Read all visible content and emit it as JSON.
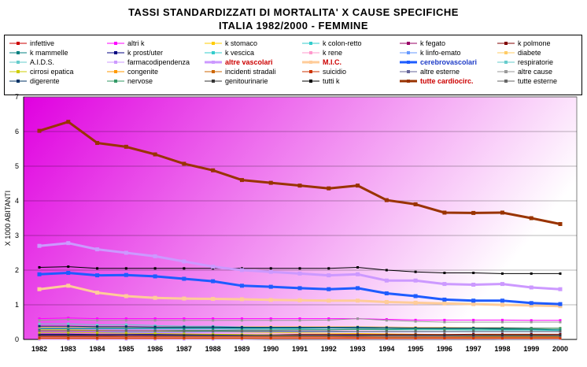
{
  "chart_data": {
    "type": "line",
    "title": "TASSI STANDARDIZZATI DI MORTALITA' X CAUSE SPECIFICHE",
    "subtitle": "ITALIA 1982/2000 - FEMMINE",
    "ylabel": "X 1000 ABITANTI",
    "xlabel": "",
    "ylim": [
      0,
      7
    ],
    "yticks": [
      "0",
      "1",
      "2",
      "3",
      "4",
      "5",
      "6",
      "7"
    ],
    "x": [
      "1982",
      "1983",
      "1984",
      "1985",
      "1986",
      "1987",
      "1988",
      "1989",
      "1990",
      "1991",
      "1992",
      "1993",
      "1994",
      "1995",
      "1996",
      "1997",
      "1998",
      "1999",
      "2000"
    ],
    "grid": true,
    "legend_position": "top",
    "background_gradient": [
      "#e000e0",
      "#ffffff"
    ],
    "series": [
      {
        "name": "infettive",
        "color": "#cc0000",
        "values": [
          0.05,
          0.05,
          0.05,
          0.05,
          0.05,
          0.05,
          0.05,
          0.05,
          0.05,
          0.05,
          0.05,
          0.06,
          0.06,
          0.06,
          0.06,
          0.06,
          0.06,
          0.06,
          0.06
        ]
      },
      {
        "name": "altri k",
        "color": "#ff00ff",
        "values": [
          0.6,
          0.62,
          0.6,
          0.6,
          0.6,
          0.6,
          0.6,
          0.6,
          0.6,
          0.6,
          0.6,
          0.6,
          0.58,
          0.56,
          0.56,
          0.56,
          0.56,
          0.55,
          0.55
        ]
      },
      {
        "name": "k stomaco",
        "color": "#ffcc00",
        "values": [
          0.28,
          0.28,
          0.26,
          0.25,
          0.24,
          0.23,
          0.22,
          0.21,
          0.2,
          0.19,
          0.18,
          0.17,
          0.16,
          0.15,
          0.14,
          0.14,
          0.13,
          0.13,
          0.12
        ]
      },
      {
        "name": "k colon-retto",
        "color": "#33cccc",
        "values": [
          0.3,
          0.3,
          0.3,
          0.3,
          0.3,
          0.3,
          0.3,
          0.3,
          0.3,
          0.3,
          0.29,
          0.29,
          0.28,
          0.28,
          0.28,
          0.27,
          0.27,
          0.27,
          0.26
        ]
      },
      {
        "name": "k fegato",
        "color": "#990066",
        "values": [
          0.1,
          0.1,
          0.1,
          0.11,
          0.11,
          0.11,
          0.11,
          0.11,
          0.11,
          0.11,
          0.11,
          0.11,
          0.1,
          0.1,
          0.1,
          0.1,
          0.1,
          0.1,
          0.1
        ]
      },
      {
        "name": "k polmone",
        "color": "#800000",
        "values": [
          0.12,
          0.12,
          0.12,
          0.12,
          0.13,
          0.13,
          0.13,
          0.13,
          0.13,
          0.14,
          0.14,
          0.14,
          0.14,
          0.14,
          0.14,
          0.15,
          0.15,
          0.15,
          0.15
        ]
      },
      {
        "name": "k mammelle",
        "color": "#008080",
        "values": [
          0.32,
          0.32,
          0.33,
          0.33,
          0.33,
          0.33,
          0.33,
          0.33,
          0.33,
          0.33,
          0.33,
          0.32,
          0.32,
          0.31,
          0.3,
          0.3,
          0.29,
          0.29,
          0.28
        ]
      },
      {
        "name": "k prost/uter",
        "color": "#000080",
        "values": [
          0.15,
          0.15,
          0.14,
          0.14,
          0.14,
          0.13,
          0.13,
          0.13,
          0.12,
          0.12,
          0.12,
          0.12,
          0.11,
          0.11,
          0.11,
          0.1,
          0.1,
          0.1,
          0.1
        ]
      },
      {
        "name": "k vescica",
        "color": "#33cccc",
        "values": [
          0.04,
          0.04,
          0.04,
          0.04,
          0.04,
          0.04,
          0.04,
          0.04,
          0.04,
          0.04,
          0.04,
          0.04,
          0.04,
          0.04,
          0.04,
          0.04,
          0.04,
          0.04,
          0.04
        ]
      },
      {
        "name": "k rene",
        "color": "#ff99cc",
        "values": [
          0.05,
          0.05,
          0.05,
          0.05,
          0.05,
          0.05,
          0.05,
          0.05,
          0.05,
          0.05,
          0.05,
          0.05,
          0.05,
          0.05,
          0.05,
          0.05,
          0.05,
          0.05,
          0.05
        ]
      },
      {
        "name": "k linfo-emato",
        "color": "#6699ff",
        "values": [
          0.2,
          0.2,
          0.2,
          0.21,
          0.21,
          0.21,
          0.22,
          0.22,
          0.22,
          0.22,
          0.22,
          0.22,
          0.22,
          0.22,
          0.22,
          0.22,
          0.22,
          0.22,
          0.22
        ]
      },
      {
        "name": "diabete",
        "color": "#ffcc66",
        "values": [
          0.35,
          0.36,
          0.36,
          0.36,
          0.36,
          0.36,
          0.36,
          0.37,
          0.37,
          0.37,
          0.37,
          0.37,
          0.36,
          0.35,
          0.35,
          0.34,
          0.34,
          0.33,
          0.33
        ]
      },
      {
        "name": "A.I.D.S.",
        "color": "#66cccc",
        "values": [
          0,
          0,
          0,
          0,
          0,
          0,
          0.01,
          0.01,
          0.02,
          0.02,
          0.03,
          0.03,
          0.04,
          0.04,
          0.03,
          0.02,
          0.01,
          0.01,
          0.01
        ]
      },
      {
        "name": "farmacodipendenza",
        "color": "#cc99ff",
        "values": [
          0,
          0,
          0,
          0,
          0,
          0,
          0,
          0,
          0.01,
          0.01,
          0.01,
          0.01,
          0.01,
          0.01,
          0.01,
          0.01,
          0.01,
          0.01,
          0.01
        ]
      },
      {
        "name": "altre vascolari",
        "color": "#cc99ff",
        "bold": true,
        "values": [
          2.7,
          2.78,
          2.6,
          2.5,
          2.4,
          2.25,
          2.1,
          2.0,
          1.95,
          1.9,
          1.85,
          1.88,
          1.7,
          1.7,
          1.6,
          1.58,
          1.6,
          1.5,
          1.45
        ]
      },
      {
        "name": "M.I.C.",
        "color": "#ffcc99",
        "bold": true,
        "values": [
          1.45,
          1.55,
          1.35,
          1.25,
          1.2,
          1.18,
          1.17,
          1.16,
          1.14,
          1.13,
          1.12,
          1.12,
          1.08,
          1.06,
          1.04,
          1.02,
          1.0,
          0.98,
          0.96
        ]
      },
      {
        "name": "cerebrovascolari",
        "color": "#1e5cff",
        "bold": true,
        "values": [
          1.88,
          1.92,
          1.85,
          1.86,
          1.82,
          1.75,
          1.68,
          1.55,
          1.52,
          1.48,
          1.45,
          1.48,
          1.33,
          1.25,
          1.15,
          1.12,
          1.12,
          1.05,
          1.02
        ]
      },
      {
        "name": "respiratorie",
        "color": "#66cccc",
        "values": [
          0.45,
          0.45,
          0.42,
          0.43,
          0.4,
          0.38,
          0.38,
          0.36,
          0.35,
          0.35,
          0.34,
          0.36,
          0.33,
          0.32,
          0.31,
          0.32,
          0.33,
          0.32,
          0.32
        ]
      },
      {
        "name": "cirrosi epatica",
        "color": "#cccc00",
        "values": [
          0.2,
          0.2,
          0.19,
          0.18,
          0.17,
          0.16,
          0.15,
          0.14,
          0.13,
          0.12,
          0.12,
          0.11,
          0.11,
          0.1,
          0.1,
          0.09,
          0.09,
          0.08,
          0.08
        ]
      },
      {
        "name": "congenite",
        "color": "#ff9900",
        "values": [
          0.03,
          0.03,
          0.03,
          0.03,
          0.03,
          0.03,
          0.03,
          0.03,
          0.03,
          0.03,
          0.03,
          0.03,
          0.03,
          0.03,
          0.03,
          0.03,
          0.03,
          0.03,
          0.03
        ]
      },
      {
        "name": "incidenti stradali",
        "color": "#cc6600",
        "values": [
          0.08,
          0.08,
          0.08,
          0.08,
          0.08,
          0.08,
          0.08,
          0.08,
          0.08,
          0.08,
          0.08,
          0.08,
          0.07,
          0.07,
          0.07,
          0.07,
          0.07,
          0.07,
          0.07
        ]
      },
      {
        "name": "suicidio",
        "color": "#cc3300",
        "values": [
          0.04,
          0.04,
          0.04,
          0.04,
          0.04,
          0.04,
          0.04,
          0.04,
          0.04,
          0.04,
          0.04,
          0.04,
          0.04,
          0.04,
          0.04,
          0.04,
          0.04,
          0.04,
          0.04
        ]
      },
      {
        "name": "altre esterne",
        "color": "#666699",
        "values": [
          0.12,
          0.12,
          0.12,
          0.12,
          0.12,
          0.11,
          0.11,
          0.11,
          0.11,
          0.11,
          0.11,
          0.1,
          0.1,
          0.1,
          0.1,
          0.1,
          0.1,
          0.1,
          0.1
        ]
      },
      {
        "name": "altre cause",
        "color": "#999999",
        "values": [
          0.55,
          0.58,
          0.55,
          0.55,
          0.55,
          0.55,
          0.55,
          0.55,
          0.55,
          0.55,
          0.56,
          0.6,
          0.55,
          0.52,
          0.5,
          0.5,
          0.5,
          0.5,
          0.5
        ]
      },
      {
        "name": "digerente",
        "color": "#003366",
        "values": [
          0.38,
          0.38,
          0.37,
          0.37,
          0.36,
          0.36,
          0.36,
          0.35,
          0.35,
          0.35,
          0.35,
          0.35,
          0.34,
          0.33,
          0.33,
          0.33,
          0.33,
          0.32,
          0.32
        ]
      },
      {
        "name": "nervose",
        "color": "#339966",
        "values": [
          0.25,
          0.25,
          0.25,
          0.25,
          0.25,
          0.26,
          0.26,
          0.27,
          0.27,
          0.28,
          0.28,
          0.29,
          0.29,
          0.3,
          0.3,
          0.3,
          0.31,
          0.31,
          0.32
        ]
      },
      {
        "name": "genitourinarie",
        "color": "#333333",
        "values": [
          0.13,
          0.13,
          0.13,
          0.13,
          0.12,
          0.12,
          0.12,
          0.12,
          0.12,
          0.12,
          0.12,
          0.12,
          0.12,
          0.12,
          0.12,
          0.12,
          0.12,
          0.12,
          0.12
        ]
      },
      {
        "name": "tutti k",
        "color": "#000000",
        "values": [
          2.08,
          2.1,
          2.05,
          2.05,
          2.05,
          2.05,
          2.05,
          2.05,
          2.05,
          2.05,
          2.05,
          2.08,
          2.0,
          1.95,
          1.92,
          1.92,
          1.9,
          1.9,
          1.9
        ]
      },
      {
        "name": "tutte cardiocirc.",
        "color": "#993300",
        "bold": true,
        "values": [
          6.02,
          6.28,
          5.67,
          5.56,
          5.34,
          5.07,
          4.88,
          4.6,
          4.52,
          4.44,
          4.36,
          4.44,
          4.02,
          3.9,
          3.66,
          3.65,
          3.66,
          3.5,
          3.33
        ]
      },
      {
        "name": "tutte esterne",
        "color": "#666666",
        "values": [
          0.25,
          0.25,
          0.25,
          0.25,
          0.25,
          0.24,
          0.24,
          0.24,
          0.24,
          0.24,
          0.24,
          0.23,
          0.23,
          0.23,
          0.23,
          0.23,
          0.23,
          0.23,
          0.23
        ]
      }
    ]
  }
}
